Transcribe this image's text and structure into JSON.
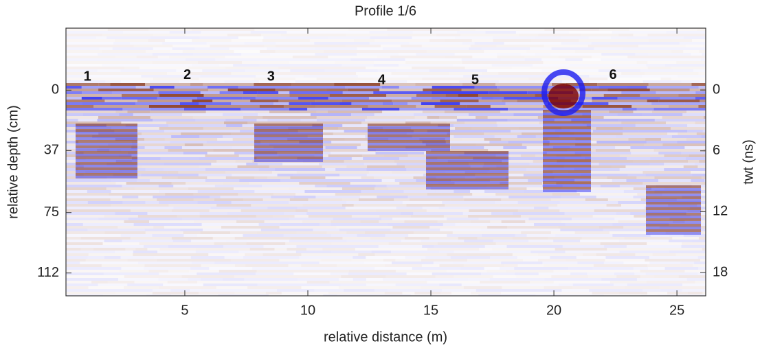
{
  "chart_data": {
    "type": "radargram",
    "title": "Profile 1/6",
    "xlabel": "relative distance (m)",
    "ylabel": "relative depth (cm)",
    "y2label": "twt (ns)",
    "xlim": [
      0.17,
      26.17
    ],
    "xticks": [
      5,
      10,
      15,
      20,
      25
    ],
    "ylim": [
      -38,
      126
    ],
    "yticks": [
      0,
      37,
      75,
      112
    ],
    "y2lim": [
      -6.1,
      20.3
    ],
    "y2ticks": [
      0,
      6,
      12,
      18
    ],
    "annotations": [
      {
        "text": "1",
        "x": 1.04,
        "y": -8
      },
      {
        "text": "2",
        "x": 5.1,
        "y": -9
      },
      {
        "text": "3",
        "x": 8.5,
        "y": -8
      },
      {
        "text": "4",
        "x": 13.0,
        "y": -6
      },
      {
        "text": "5",
        "x": 16.8,
        "y": -6
      },
      {
        "text": "6",
        "x": 22.4,
        "y": -9
      }
    ]
  }
}
